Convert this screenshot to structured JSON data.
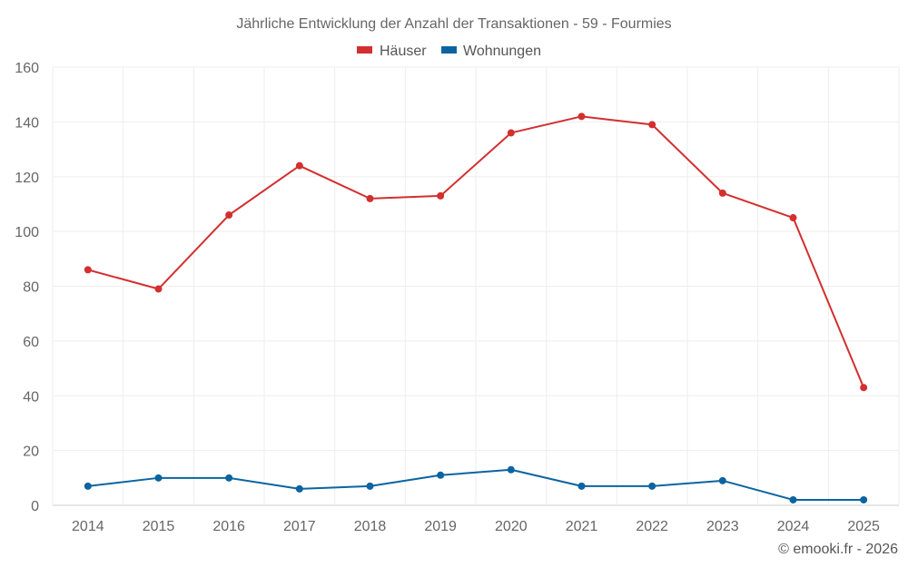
{
  "chart_data": {
    "type": "line",
    "title": "Jährliche Entwicklung der Anzahl der Transaktionen - 59 - Fourmies",
    "categories": [
      "2014",
      "2015",
      "2016",
      "2017",
      "2018",
      "2019",
      "2020",
      "2021",
      "2022",
      "2023",
      "2024",
      "2025"
    ],
    "series": [
      {
        "name": "Häuser",
        "color": "#d32f2f",
        "values": [
          86,
          79,
          106,
          124,
          112,
          113,
          136,
          142,
          139,
          114,
          105,
          43
        ]
      },
      {
        "name": "Wohnungen",
        "color": "#0b64a0",
        "values": [
          7,
          10,
          10,
          6,
          7,
          11,
          13,
          7,
          7,
          9,
          2,
          2
        ]
      }
    ],
    "ylim": [
      0,
      160
    ],
    "yticks": [
      0,
      20,
      40,
      60,
      80,
      100,
      120,
      140,
      160
    ],
    "grid": true,
    "legend": "top-center",
    "xlabel": "",
    "ylabel": ""
  },
  "credit": "© emooki.fr - 2026"
}
